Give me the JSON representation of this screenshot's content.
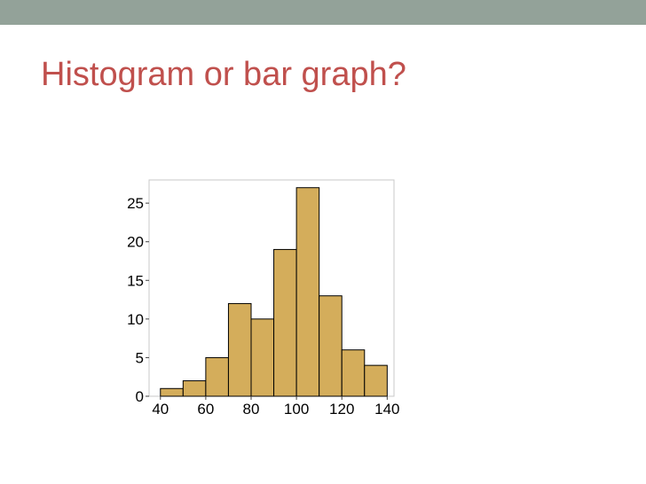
{
  "slide": {
    "title": "Histogram or bar graph?",
    "title_color": "#c0504d",
    "band_color": "#93a299"
  },
  "chart_data": {
    "type": "bar",
    "histogram": true,
    "bins": [
      [
        40,
        50
      ],
      [
        50,
        60
      ],
      [
        60,
        70
      ],
      [
        70,
        80
      ],
      [
        80,
        90
      ],
      [
        90,
        100
      ],
      [
        100,
        110
      ],
      [
        110,
        120
      ],
      [
        120,
        130
      ],
      [
        130,
        140
      ]
    ],
    "values": [
      1,
      2,
      5,
      12,
      10,
      19,
      27,
      13,
      6,
      4
    ],
    "xlim": [
      35,
      143
    ],
    "ylim": [
      0,
      28
    ],
    "xticks": [
      40,
      60,
      80,
      100,
      120,
      140
    ],
    "yticks": [
      0,
      5,
      10,
      15,
      20,
      25
    ],
    "xtick_labels": [
      "40",
      "60",
      "80",
      "100",
      "120",
      "140"
    ],
    "ytick_labels": [
      "0",
      "5",
      "10",
      "15",
      "20",
      "25"
    ],
    "title": "",
    "xlabel": "",
    "ylabel": "",
    "grid": false,
    "bar_color": "#d4ad5b",
    "edge_color": "#000000",
    "frame_color": "#c8c8c8"
  }
}
